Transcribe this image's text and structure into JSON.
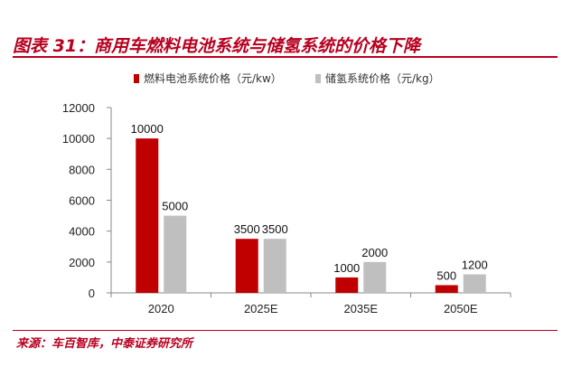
{
  "figure": {
    "title": "图表 31：商用车燃料电池系统与储氢系统的价格下降",
    "source_label": "来源：",
    "source_text": "车百智库，中泰证券研究所"
  },
  "colors": {
    "accent": "#b8001f",
    "fuel_cell": "#c00000",
    "hydrogen_storage": "#bfbfbf"
  },
  "chart_data": {
    "type": "bar",
    "categories": [
      "2020",
      "2025E",
      "2035E",
      "2050E"
    ],
    "series": [
      {
        "name": "燃料电池系统价格（元/kw）",
        "values": [
          10000,
          3500,
          1000,
          500
        ],
        "color": "#c00000"
      },
      {
        "name": "储氢系统价格（元/kg）",
        "values": [
          5000,
          3500,
          2000,
          1200
        ],
        "color": "#bfbfbf"
      }
    ],
    "yticks": [
      0,
      2000,
      4000,
      6000,
      8000,
      10000,
      12000
    ],
    "ylim": [
      0,
      12000
    ],
    "grid": false,
    "legend_position": "top"
  }
}
